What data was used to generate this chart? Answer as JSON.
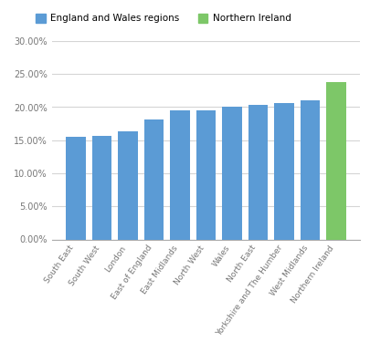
{
  "categories": [
    "South East",
    "South West",
    "London",
    "East of England",
    "East Midlands",
    "North West",
    "Wales",
    "North East",
    "Yorkshire and The Humber",
    "West Midlands",
    "Northern Ireland"
  ],
  "values": [
    0.155,
    0.157,
    0.163,
    0.181,
    0.195,
    0.195,
    0.2,
    0.203,
    0.206,
    0.211,
    0.238
  ],
  "bar_colors": [
    "#5b9bd5",
    "#5b9bd5",
    "#5b9bd5",
    "#5b9bd5",
    "#5b9bd5",
    "#5b9bd5",
    "#5b9bd5",
    "#5b9bd5",
    "#5b9bd5",
    "#5b9bd5",
    "#7dc768"
  ],
  "legend_labels": [
    "England and Wales regions",
    "Northern Ireland"
  ],
  "legend_colors": [
    "#5b9bd5",
    "#7dc768"
  ],
  "yticks": [
    0.0,
    0.05,
    0.1,
    0.15,
    0.2,
    0.25,
    0.3
  ],
  "ytick_labels": [
    "0.00%",
    "5.00%",
    "10.00%",
    "15.00%",
    "20.00%",
    "25.00%",
    "30.00%"
  ],
  "ylim": [
    0,
    0.3
  ],
  "background_color": "#ffffff",
  "grid_color": "#d5d5d5"
}
